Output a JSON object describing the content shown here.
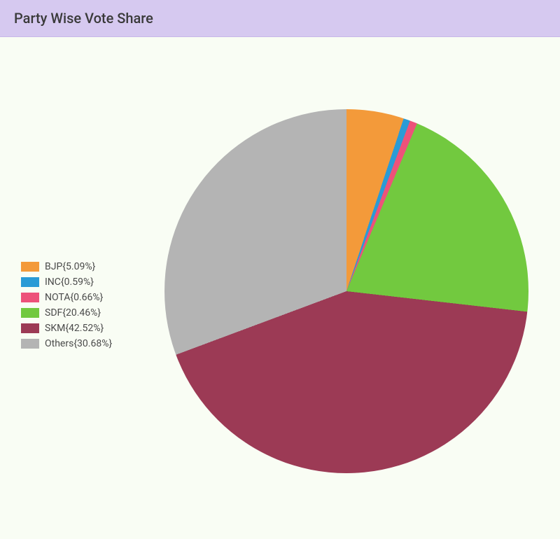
{
  "header": {
    "title": "Party Wise Vote Share"
  },
  "chart": {
    "type": "pie",
    "background_color": "#f9fdf4",
    "header_bg": "#d6c9f0",
    "header_text_color": "#3a3a3a",
    "title_fontsize": 20,
    "legend_fontsize": 14,
    "legend_text_color": "#4a4a4a",
    "legend_swatch_width": 26,
    "legend_swatch_height": 14,
    "pie_diameter": 520,
    "start_angle_deg": 0,
    "slices": [
      {
        "name": "BJP",
        "value": 5.09,
        "color": "#f39a3a",
        "label": "BJP{5.09%}"
      },
      {
        "name": "INC",
        "value": 0.59,
        "color": "#2a9bd6",
        "label": "INC{0.59%}"
      },
      {
        "name": "NOTA",
        "value": 0.66,
        "color": "#ed527a",
        "label": "NOTA{0.66%}"
      },
      {
        "name": "SDF",
        "value": 20.46,
        "color": "#72c93f",
        "label": "SDF{20.46%}"
      },
      {
        "name": "SKM",
        "value": 42.52,
        "color": "#9c3a55",
        "label": "SKM{42.52%}"
      },
      {
        "name": "Others",
        "value": 30.68,
        "color": "#b4b4b4",
        "label": "Others{30.68%}"
      }
    ]
  }
}
